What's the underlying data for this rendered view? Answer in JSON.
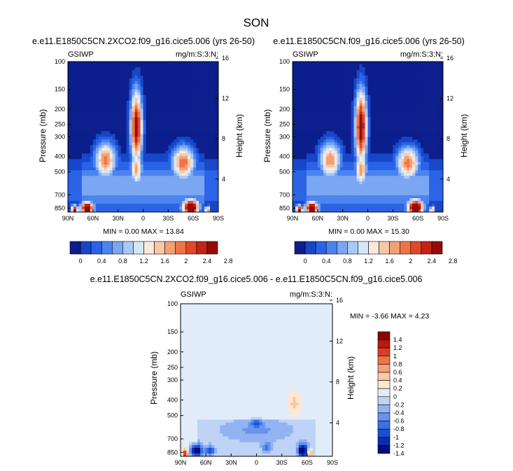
{
  "title": "SON",
  "colors": {
    "seq": [
      "#0b1e8c",
      "#1846c8",
      "#2a63e6",
      "#4a84ee",
      "#7aa6f2",
      "#a9c8f6",
      "#d6e6fa",
      "#fbe9dc",
      "#f8c8a6",
      "#f4a074",
      "#ef7548",
      "#e3472a",
      "#c22415",
      "#960a0a"
    ],
    "diff": [
      "#000e7a",
      "#0b2bb0",
      "#1c4fd6",
      "#3a71e6",
      "#6593ee",
      "#92b3f2",
      "#bfd3f6",
      "#e1ecfb",
      "#fde6d3",
      "#fbc8a5",
      "#f6a07a",
      "#ef724b",
      "#dc3d22",
      "#b61a0d",
      "#8a0505"
    ]
  },
  "chart_data": [
    {
      "type": "heatmap",
      "title": "e.e11.E1850C5CN.2XCO2.f09_g16.cice5.006 (yrs 26-50)",
      "left_label": "GSIWP",
      "right_label": "mg/m:S:3:N:",
      "xlabel": "",
      "ylabel": "Pressure (mb)",
      "ylabel_right": "Height (km)",
      "x_ticks": [
        "90N",
        "60N",
        "30N",
        "0",
        "30S",
        "60S",
        "90S"
      ],
      "y_ticks": [
        "100",
        "150",
        "200",
        "250",
        "300",
        "400",
        "500",
        "700",
        "850"
      ],
      "y_ticks_right": [
        "16",
        "12",
        "8",
        "4"
      ],
      "min_max_text": "MIN =   0.00  MAX =  13.84",
      "colorbar_labels": [
        "0",
        "0.4",
        "0.8",
        "1.2",
        "1.6",
        "2",
        "2.4",
        "2.8"
      ],
      "features": [
        {
          "lat": 8,
          "p": 260,
          "v": 2.8,
          "wx": 7,
          "wy": 0.55
        },
        {
          "lat": 8,
          "p": 480,
          "v": 1.9,
          "wx": 7,
          "wy": 0.25
        },
        {
          "lat": 45,
          "p": 420,
          "v": 2.1,
          "wx": 13,
          "wy": 0.27
        },
        {
          "lat": -48,
          "p": 440,
          "v": 2.2,
          "wx": 14,
          "wy": 0.25
        },
        {
          "lat": 67,
          "p": 850,
          "v": 3.2,
          "wx": 8,
          "wy": 0.1
        },
        {
          "lat": 82,
          "p": 880,
          "v": 3.0,
          "wx": 4,
          "wy": 0.08
        },
        {
          "lat": -57,
          "p": 840,
          "v": 3.4,
          "wx": 10,
          "wy": 0.12
        },
        {
          "lat": -77,
          "p": 880,
          "v": 2.2,
          "wx": 3,
          "wy": 0.07
        }
      ]
    },
    {
      "type": "heatmap",
      "title": "e.e11.E1850C5CN.f09_g16.cice5.006 (yrs 26-50)",
      "left_label": "GSIWP",
      "right_label": "mg/m:S:3:N:",
      "xlabel": "",
      "ylabel": "Pressure (mb)",
      "ylabel_right": "Height (km)",
      "x_ticks": [
        "90N",
        "60N",
        "30N",
        "0",
        "30S",
        "60S",
        "90S"
      ],
      "y_ticks": [
        "100",
        "150",
        "200",
        "250",
        "300",
        "400",
        "500",
        "700",
        "850"
      ],
      "y_ticks_right": [
        "16",
        "12",
        "8",
        "4"
      ],
      "min_max_text": "MIN =   0.00  MAX =  15.30",
      "colorbar_labels": [
        "0",
        "0.4",
        "0.8",
        "1.2",
        "1.6",
        "2",
        "2.4",
        "2.8"
      ],
      "features": [
        {
          "lat": 8,
          "p": 260,
          "v": 2.9,
          "wx": 7,
          "wy": 0.55
        },
        {
          "lat": 8,
          "p": 480,
          "v": 2.0,
          "wx": 7,
          "wy": 0.25
        },
        {
          "lat": 45,
          "p": 420,
          "v": 2.0,
          "wx": 13,
          "wy": 0.27
        },
        {
          "lat": -48,
          "p": 440,
          "v": 2.1,
          "wx": 14,
          "wy": 0.25
        },
        {
          "lat": 67,
          "p": 850,
          "v": 3.2,
          "wx": 8,
          "wy": 0.1
        },
        {
          "lat": 82,
          "p": 880,
          "v": 2.9,
          "wx": 4,
          "wy": 0.08
        },
        {
          "lat": -57,
          "p": 840,
          "v": 3.3,
          "wx": 10,
          "wy": 0.12
        },
        {
          "lat": -77,
          "p": 880,
          "v": 2.0,
          "wx": 3,
          "wy": 0.07
        }
      ]
    },
    {
      "type": "heatmap",
      "title": "e.e11.E1850C5CN.2XCO2.f09_g16.cice5.006 - e.e11.E1850C5CN.f09_g16.cice5.006",
      "left_label": "GSIWP",
      "right_label": "mg/m:S:3:N:",
      "xlabel": "",
      "ylabel": "Pressure (mb)",
      "ylabel_right": "Height (km)",
      "x_ticks": [
        "90N",
        "60N",
        "30N",
        "0",
        "30S",
        "60S",
        "90S"
      ],
      "y_ticks": [
        "100",
        "150",
        "200",
        "250",
        "300",
        "400",
        "500",
        "700",
        "850"
      ],
      "y_ticks_right": [
        "16",
        "12",
        "8",
        "4"
      ],
      "min_max_text": "MIN = -3.66  MAX =   4.23",
      "colorbar_labels": [
        "1.4",
        "1.2",
        "1",
        "0.8",
        "0.6",
        "0.4",
        "0.2",
        "0",
        "-0.2",
        "-0.4",
        "-0.6",
        "-0.8",
        "-1",
        "-1.2",
        "-1.4"
      ],
      "features": [
        {
          "lat": 10,
          "p": 300,
          "v": 0.0,
          "wx": 3,
          "wy": 0.3
        },
        {
          "lat": 0,
          "p": 620,
          "v": -0.35,
          "wx": 40,
          "wy": 0.15
        },
        {
          "lat": 0,
          "p": 560,
          "v": -0.7,
          "wx": 6,
          "wy": 0.06
        },
        {
          "lat": -12,
          "p": 790,
          "v": -0.6,
          "wx": 5,
          "wy": 0.08
        },
        {
          "lat": 72,
          "p": 830,
          "v": -1.6,
          "wx": 7,
          "wy": 0.09
        },
        {
          "lat": 55,
          "p": 830,
          "v": -0.9,
          "wx": 5,
          "wy": 0.07
        },
        {
          "lat": -55,
          "p": 830,
          "v": -1.6,
          "wx": 6,
          "wy": 0.09
        },
        {
          "lat": 84,
          "p": 870,
          "v": 1.2,
          "wx": 3,
          "wy": 0.07
        },
        {
          "lat": -63,
          "p": 860,
          "v": 1.3,
          "wx": 2.5,
          "wy": 0.07
        },
        {
          "lat": -45,
          "p": 420,
          "v": 0.35,
          "wx": 6,
          "wy": 0.15
        }
      ]
    }
  ]
}
